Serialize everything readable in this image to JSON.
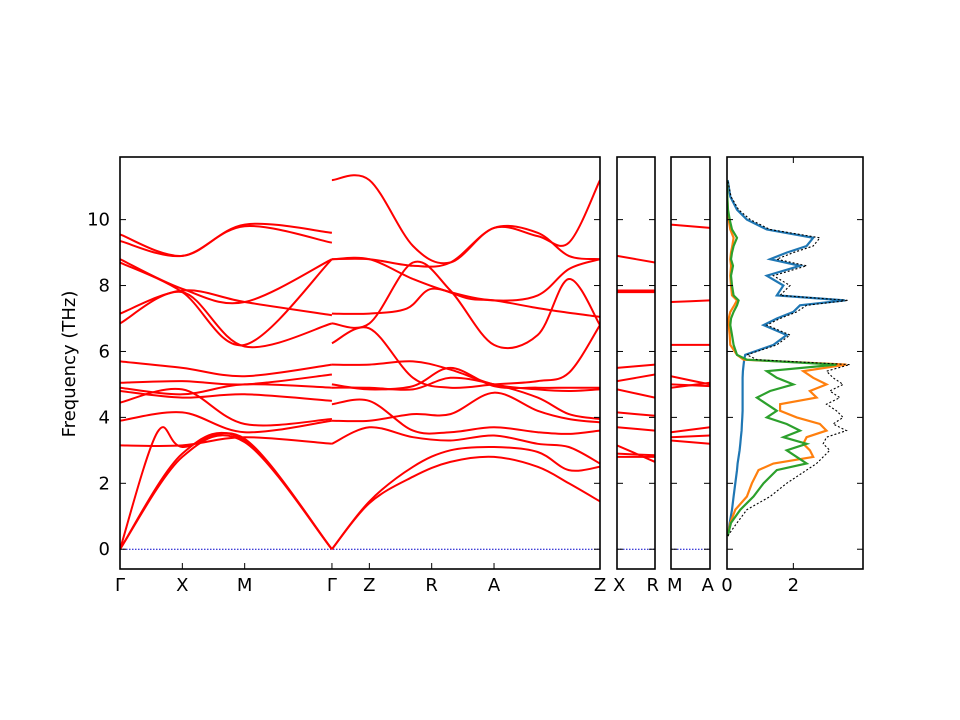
{
  "chart_data": {
    "type": "line",
    "ylabel": "Frequency (THz)",
    "ylim": [
      -0.6,
      11.9
    ],
    "yticks": [
      0,
      2,
      4,
      6,
      8,
      10
    ],
    "grid": false,
    "colors": {
      "bands": "#ff0000",
      "zero_line": "#0000cc",
      "dos_total": "#000000"
    },
    "segments": [
      {
        "name": "Γ-X-M-Γ-Z-R-A-Z",
        "labels": [
          "Γ",
          "X",
          "M",
          "Γ",
          "Z",
          "R",
          "A",
          "Z"
        ],
        "label_pos": [
          0,
          1,
          2,
          3.4,
          4,
          5,
          6,
          7.7
        ],
        "branches": [
          {
            "x": [
              0,
              1,
              2,
              3.4
            ],
            "y": [
              9.55,
              8.9,
              9.85,
              9.6
            ]
          },
          {
            "x": [
              0,
              1,
              2,
              3.4
            ],
            "y": [
              9.35,
              8.9,
              9.8,
              9.3
            ]
          },
          {
            "x": [
              0,
              1,
              2,
              3.4
            ],
            "y": [
              8.8,
              7.9,
              7.5,
              8.8
            ]
          },
          {
            "x": [
              0,
              1,
              2,
              3.4
            ],
            "y": [
              8.7,
              7.8,
              6.2,
              8.8
            ]
          },
          {
            "x": [
              0,
              1,
              2,
              3.4
            ],
            "y": [
              7.15,
              7.85,
              7.5,
              7.1
            ]
          },
          {
            "x": [
              0,
              1,
              2,
              3.4
            ],
            "y": [
              6.85,
              7.8,
              6.15,
              6.85
            ]
          },
          {
            "x": [
              0,
              1,
              2,
              3.4
            ],
            "y": [
              5.7,
              5.5,
              5.25,
              5.6
            ]
          },
          {
            "x": [
              0,
              1,
              2,
              3.4
            ],
            "y": [
              5.05,
              5.1,
              5.0,
              5.3
            ]
          },
          {
            "x": [
              0,
              1,
              2,
              3.4
            ],
            "y": [
              4.9,
              4.7,
              5.0,
              4.9
            ]
          },
          {
            "x": [
              0,
              1,
              2,
              3.4
            ],
            "y": [
              4.8,
              4.6,
              4.7,
              4.5
            ]
          },
          {
            "x": [
              0,
              1,
              2,
              3.4
            ],
            "y": [
              4.45,
              4.85,
              3.8,
              3.95
            ]
          },
          {
            "x": [
              0,
              1,
              2,
              3.4
            ],
            "y": [
              3.9,
              4.15,
              3.55,
              3.9
            ]
          },
          {
            "x": [
              0,
              1,
              2,
              3.4
            ],
            "y": [
              3.15,
              3.15,
              3.4,
              3.2
            ]
          },
          {
            "x": [
              0,
              0.6,
              1,
              2,
              3.4
            ],
            "y": [
              0,
              3.55,
              3.1,
              3.35,
              0
            ]
          },
          {
            "x": [
              0,
              1,
              2,
              3.4
            ],
            "y": [
              0,
              2.9,
              3.3,
              0
            ]
          },
          {
            "x": [
              0,
              1,
              2,
              3.4
            ],
            "y": [
              0,
              2.8,
              3.25,
              0
            ]
          },
          {
            "x": [
              3.4,
              4,
              4.7,
              5.3,
              6,
              6.7,
              7.2,
              7.7
            ],
            "y": [
              11.2,
              11.2,
              9.2,
              8.7,
              9.75,
              9.5,
              9.3,
              11.2
            ]
          },
          {
            "x": [
              3.4,
              4,
              4.7,
              5.3,
              6,
              6.7,
              7.2,
              7.7
            ],
            "y": [
              8.8,
              8.8,
              8.6,
              8.7,
              9.75,
              9.6,
              8.9,
              8.8
            ]
          },
          {
            "x": [
              3.4,
              4,
              4.7,
              5.3,
              6,
              6.7,
              7.2,
              7.7
            ],
            "y": [
              8.8,
              8.8,
              8.2,
              7.8,
              7.55,
              7.7,
              8.5,
              8.8
            ]
          },
          {
            "x": [
              3.4,
              4,
              4.6,
              5,
              5.6,
              6,
              6.6,
              7.1,
              7.7
            ],
            "y": [
              7.15,
              7.15,
              7.3,
              7.9,
              7.6,
              7.55,
              7.35,
              7.2,
              7.05
            ]
          },
          {
            "x": [
              3.4,
              4,
              4.7,
              5.3,
              6,
              6.7,
              7.2,
              7.7
            ],
            "y": [
              6.85,
              6.85,
              8.7,
              7.85,
              6.2,
              6.5,
              8.2,
              6.8
            ]
          },
          {
            "x": [
              3.4,
              4,
              4.7,
              5.3,
              6,
              6.7,
              7.2,
              7.7
            ],
            "y": [
              6.25,
              6.7,
              5.2,
              4.9,
              5.0,
              5.1,
              5.35,
              6.8
            ]
          },
          {
            "x": [
              3.4,
              4,
              4.7,
              5.3,
              6,
              6.7,
              7.2,
              7.7
            ],
            "y": [
              5.6,
              5.6,
              5.7,
              5.45,
              5.0,
              4.85,
              4.8,
              4.85
            ]
          },
          {
            "x": [
              3.4,
              4,
              4.7,
              5.3,
              6,
              6.7,
              7.2,
              7.7
            ],
            "y": [
              5.0,
              4.85,
              4.95,
              5.5,
              4.95,
              4.9,
              4.9,
              4.9
            ]
          },
          {
            "x": [
              3.4,
              4,
              4.7,
              5.3,
              6,
              6.7,
              7.2,
              7.7
            ],
            "y": [
              4.9,
              4.9,
              4.85,
              5.2,
              5.0,
              4.6,
              4.1,
              3.95
            ]
          },
          {
            "x": [
              3.4,
              4,
              4.7,
              5.3,
              6,
              6.7,
              7.2,
              7.7
            ],
            "y": [
              3.9,
              3.9,
              4.1,
              4.1,
              4.75,
              4.2,
              3.95,
              3.85
            ]
          },
          {
            "x": [
              3.4,
              4,
              4.7,
              5.3,
              6,
              6.7,
              7.2,
              7.7
            ],
            "y": [
              4.4,
              4.5,
              3.6,
              3.55,
              3.7,
              3.55,
              3.5,
              3.6
            ]
          },
          {
            "x": [
              3.4,
              4,
              4.7,
              5.3,
              6,
              6.7,
              7.2,
              7.7
            ],
            "y": [
              3.2,
              3.7,
              3.4,
              3.3,
              3.45,
              3.2,
              3.1,
              2.6
            ]
          },
          {
            "x": [
              3.4,
              4,
              4.7,
              5.3,
              6,
              6.7,
              7.2,
              7.7
            ],
            "y": [
              0,
              1.45,
              2.5,
              3.0,
              3.1,
              2.95,
              2.4,
              2.5
            ]
          },
          {
            "x": [
              3.4,
              4,
              4.7,
              5.3,
              6,
              6.7,
              7.2,
              7.7
            ],
            "y": [
              0,
              1.4,
              2.2,
              2.65,
              2.8,
              2.5,
              2.0,
              1.45
            ]
          }
        ]
      },
      {
        "name": "X-R",
        "labels": [
          "X",
          "R"
        ],
        "label_pos": [
          0,
          1
        ],
        "branches": [
          {
            "x": [
              0,
              1
            ],
            "y": [
              8.9,
              8.7
            ]
          },
          {
            "x": [
              0,
              1
            ],
            "y": [
              7.85,
              7.85
            ]
          },
          {
            "x": [
              0,
              1
            ],
            "y": [
              7.8,
              7.8
            ]
          },
          {
            "x": [
              0,
              1
            ],
            "y": [
              5.5,
              5.6
            ]
          },
          {
            "x": [
              0,
              1
            ],
            "y": [
              5.1,
              5.3
            ]
          },
          {
            "x": [
              0,
              1
            ],
            "y": [
              4.85,
              4.6
            ]
          },
          {
            "x": [
              0,
              1
            ],
            "y": [
              4.15,
              4.05
            ]
          },
          {
            "x": [
              0,
              1
            ],
            "y": [
              3.7,
              3.6
            ]
          },
          {
            "x": [
              0,
              1
            ],
            "y": [
              3.15,
              2.65
            ]
          },
          {
            "x": [
              0,
              1
            ],
            "y": [
              2.9,
              2.85
            ]
          },
          {
            "x": [
              0,
              1
            ],
            "y": [
              2.8,
              2.8
            ]
          }
        ]
      },
      {
        "name": "M-A",
        "labels": [
          "M",
          "A"
        ],
        "label_pos": [
          0,
          1
        ],
        "branches": [
          {
            "x": [
              0,
              1
            ],
            "y": [
              9.85,
              9.75
            ]
          },
          {
            "x": [
              0,
              1
            ],
            "y": [
              7.5,
              7.55
            ]
          },
          {
            "x": [
              0,
              1
            ],
            "y": [
              6.2,
              6.2
            ]
          },
          {
            "x": [
              0,
              1
            ],
            "y": [
              5.25,
              5.0
            ]
          },
          {
            "x": [
              0,
              1
            ],
            "y": [
              5.0,
              4.95
            ]
          },
          {
            "x": [
              0,
              1
            ],
            "y": [
              4.9,
              5.05
            ]
          },
          {
            "x": [
              0,
              1
            ],
            "y": [
              3.55,
              3.7
            ]
          },
          {
            "x": [
              0,
              1
            ],
            "y": [
              3.4,
              3.45
            ]
          },
          {
            "x": [
              0,
              1
            ],
            "y": [
              3.3,
              3.2
            ]
          }
        ]
      }
    ],
    "dos": {
      "xlim": [
        0,
        4.1
      ],
      "xticks": [
        0,
        2
      ],
      "freq": [
        0.4,
        0.8,
        1.2,
        1.6,
        2.0,
        2.4,
        2.6,
        2.8,
        3.0,
        3.2,
        3.4,
        3.6,
        3.8,
        4.0,
        4.2,
        4.4,
        4.6,
        4.8,
        5.0,
        5.2,
        5.4,
        5.6,
        5.75,
        5.9,
        6.2,
        6.5,
        6.8,
        7.0,
        7.2,
        7.4,
        7.55,
        7.7,
        8.0,
        8.3,
        8.6,
        8.8,
        9.0,
        9.2,
        9.45,
        9.7,
        10.0,
        10.3,
        10.7,
        11.2
      ],
      "series": [
        {
          "color": "#1f77b4",
          "values": [
            0.02,
            0.08,
            0.15,
            0.2,
            0.25,
            0.3,
            0.32,
            0.35,
            0.38,
            0.4,
            0.42,
            0.44,
            0.45,
            0.46,
            0.47,
            0.47,
            0.47,
            0.47,
            0.47,
            0.47,
            0.48,
            0.5,
            0.52,
            0.55,
            1.4,
            1.8,
            1.1,
            1.5,
            2.0,
            2.2,
            3.55,
            1.5,
            1.7,
            1.2,
            2.2,
            1.3,
            1.8,
            2.4,
            2.6,
            1.2,
            0.6,
            0.3,
            0.1,
            0.02
          ]
        },
        {
          "color": "#ff7f0e",
          "values": [
            0.02,
            0.1,
            0.25,
            0.6,
            0.75,
            0.95,
            1.4,
            2.6,
            2.5,
            2.3,
            2.4,
            3.0,
            2.8,
            2.1,
            1.6,
            1.6,
            2.7,
            2.5,
            3.0,
            2.6,
            2.3,
            3.6,
            0.5,
            0.3,
            0.1,
            0.08,
            0.05,
            0.05,
            0.1,
            0.22,
            0.3,
            0.15,
            0.12,
            0.1,
            0.12,
            0.1,
            0.12,
            0.16,
            0.2,
            0.1,
            0.05,
            0.02,
            0.01,
            0.0
          ]
        },
        {
          "color": "#2ca02c",
          "values": [
            0.02,
            0.12,
            0.4,
            0.8,
            1.1,
            1.5,
            2.4,
            2.1,
            1.8,
            2.4,
            1.7,
            2.2,
            1.8,
            1.2,
            1.5,
            1.2,
            0.9,
            1.3,
            2.0,
            1.5,
            1.2,
            3.3,
            0.6,
            0.3,
            0.2,
            0.15,
            0.1,
            0.12,
            0.2,
            0.3,
            0.35,
            0.2,
            0.15,
            0.12,
            0.18,
            0.12,
            0.15,
            0.2,
            0.3,
            0.15,
            0.08,
            0.03,
            0.01,
            0.0
          ]
        },
        {
          "color": "#000000",
          "dashed": true,
          "values": [
            0.02,
            0.3,
            0.6,
            1.3,
            1.8,
            2.4,
            2.7,
            2.9,
            3.1,
            2.9,
            3.0,
            3.6,
            3.2,
            3.5,
            3.3,
            3.0,
            3.4,
            3.1,
            3.5,
            3.2,
            3.0,
            3.7,
            0.9,
            0.6,
            1.5,
            1.9,
            1.2,
            1.6,
            2.1,
            2.4,
            3.65,
            1.6,
            1.9,
            1.4,
            2.4,
            1.5,
            2.0,
            2.6,
            2.8,
            1.3,
            0.7,
            0.35,
            0.12,
            0.02
          ]
        }
      ]
    }
  }
}
